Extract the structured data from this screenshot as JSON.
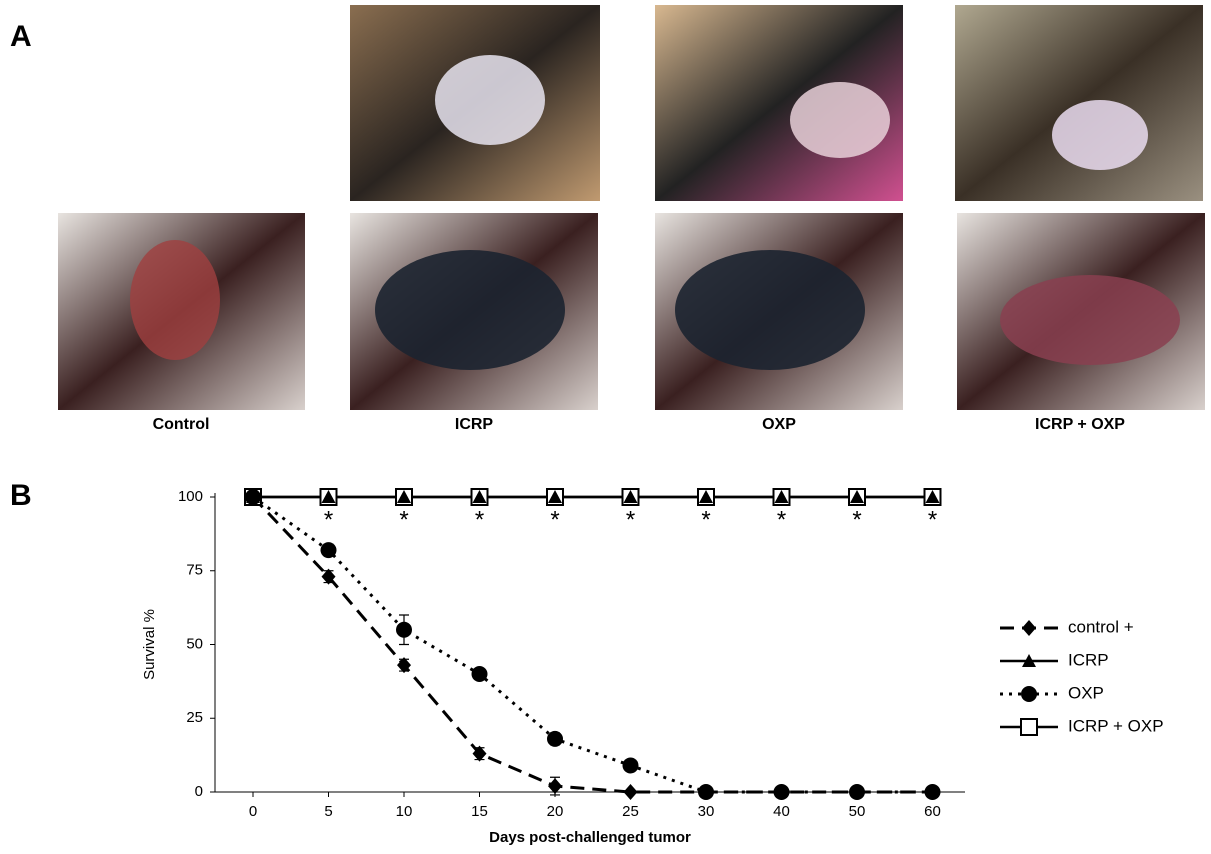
{
  "panel_a": {
    "label": "A",
    "captions": [
      "Control",
      "ICRP",
      "OXP",
      "ICRP + OXP"
    ]
  },
  "panel_b": {
    "label": "B"
  },
  "chart_data": {
    "type": "line",
    "xlabel": "Days post-challenged tumor",
    "ylabel": "Survival %",
    "categories": [
      "0",
      "5",
      "10",
      "15",
      "20",
      "25",
      "30",
      "40",
      "50",
      "60"
    ],
    "ylim": [
      0,
      100
    ],
    "yticks": [
      0,
      25,
      50,
      75,
      100
    ],
    "annotations": [
      null,
      "*",
      "*",
      "*",
      "*",
      "*",
      "*",
      "*",
      "*",
      "*"
    ],
    "series": [
      {
        "name": "control +",
        "color": "#000000",
        "line_style": "dashed",
        "marker": "diamond",
        "values": [
          100,
          73,
          43,
          13,
          2,
          0,
          0,
          0,
          0,
          0
        ],
        "errors": [
          null,
          2,
          2,
          2,
          3,
          null,
          null,
          null,
          null,
          null
        ]
      },
      {
        "name": "ICRP",
        "color": "#000000",
        "line_style": "solid",
        "marker": "triangle",
        "values": [
          100,
          100,
          100,
          100,
          100,
          100,
          100,
          100,
          100,
          100
        ],
        "errors": [
          null,
          null,
          null,
          null,
          null,
          null,
          null,
          null,
          null,
          null
        ]
      },
      {
        "name": "OXP",
        "color": "#000000",
        "line_style": "dotted",
        "marker": "circle",
        "values": [
          100,
          82,
          55,
          40,
          18,
          9,
          0,
          0,
          0,
          0
        ],
        "errors": [
          null,
          2,
          5,
          null,
          2,
          null,
          null,
          null,
          null,
          null
        ]
      },
      {
        "name": "ICRP + OXP",
        "color": "#000000",
        "line_style": "solid",
        "marker": "square-open",
        "values": [
          100,
          100,
          100,
          100,
          100,
          100,
          100,
          100,
          100,
          100
        ],
        "errors": [
          null,
          null,
          null,
          null,
          null,
          null,
          null,
          null,
          null,
          null
        ]
      }
    ]
  }
}
